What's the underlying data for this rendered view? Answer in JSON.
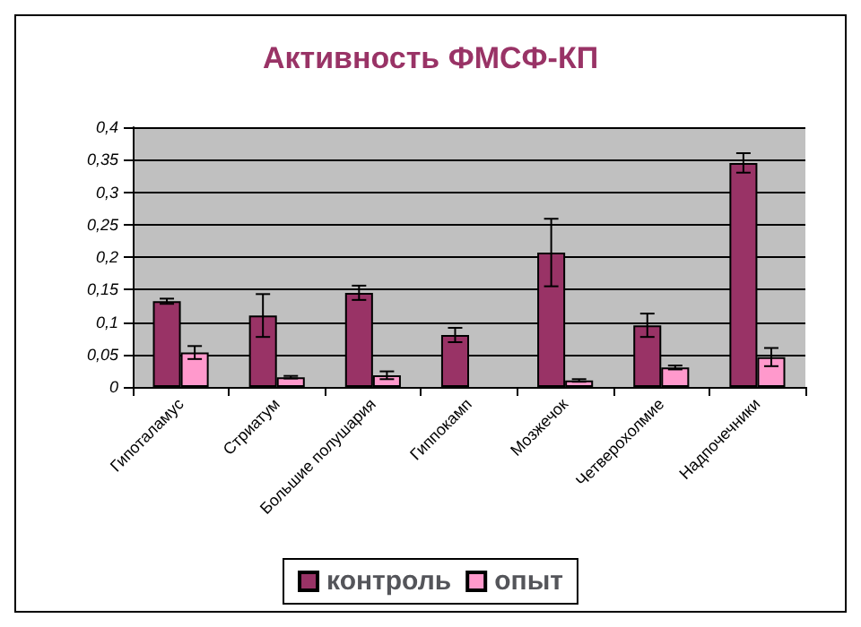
{
  "chart_data": {
    "type": "bar",
    "title": "Активность ФМСФ-КП",
    "categories": [
      "Гипоталамус",
      "Стриатум",
      "Большие полушария",
      "Гиппокамп",
      "Мозжечок",
      "Четверохолмие",
      "Надпочечники"
    ],
    "series": [
      {
        "name": "контроль",
        "color": "#993366",
        "values": [
          0.132,
          0.11,
          0.145,
          0.08,
          0.207,
          0.095,
          0.345
        ],
        "errors": [
          0.004,
          0.033,
          0.011,
          0.011,
          0.052,
          0.018,
          0.015
        ]
      },
      {
        "name": "опыт",
        "color": "#ff99cc",
        "values": [
          0.053,
          0.015,
          0.018,
          null,
          0.01,
          0.03,
          0.046
        ],
        "errors": [
          0.01,
          0.002,
          0.006,
          null,
          0.002,
          0.003,
          0.014
        ]
      }
    ],
    "ylim": [
      0,
      0.4
    ],
    "yticks": [
      {
        "value": 0,
        "label": "0"
      },
      {
        "value": 0.05,
        "label": "0,05"
      },
      {
        "value": 0.1,
        "label": "0,1"
      },
      {
        "value": 0.15,
        "label": "0,15"
      },
      {
        "value": 0.2,
        "label": "0,2"
      },
      {
        "value": 0.25,
        "label": "0,25"
      },
      {
        "value": 0.3,
        "label": "0,3"
      },
      {
        "value": 0.35,
        "label": "0,35"
      },
      {
        "value": 0.4,
        "label": "0,4"
      }
    ],
    "grid": "y",
    "legend": "bottom"
  }
}
